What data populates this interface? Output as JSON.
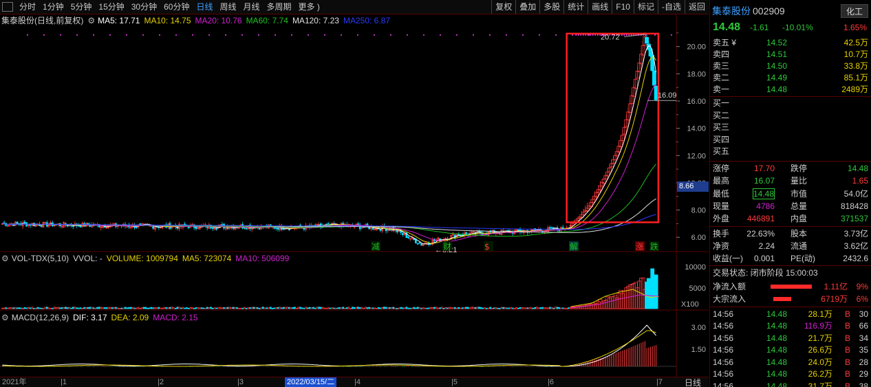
{
  "toolbar": {
    "periods": [
      "分时",
      "1分钟",
      "5分钟",
      "15分钟",
      "30分钟",
      "60分钟",
      "日线",
      "周线",
      "月线",
      "多周期",
      "更多 )"
    ],
    "active_period": "日线",
    "tools": [
      "复权",
      "叠加",
      "多股",
      "统计",
      "画线",
      "F10",
      "标记",
      "-自选",
      "返回"
    ]
  },
  "legend_main": {
    "title": "集泰股份(日线,前复权)",
    "ma5": "MA5: 17.71",
    "ma10": "MA10: 14.75",
    "ma20": "MA20: 10.76",
    "ma60": "MA60: 7.74",
    "ma120": "MA120: 7.23",
    "ma250": "MA250: 6.87"
  },
  "legend_vol": {
    "title": "VOL-TDX(5,10)",
    "vvol": "VVOL: -",
    "volume": "VOLUME: 1009794",
    "ma5": "MA5: 723074",
    "ma10": "MA10: 506099"
  },
  "legend_macd": {
    "title": "MACD(12,26,9)",
    "dif": "DIF: 3.17",
    "dea": "DEA: 2.09",
    "macd": "MACD: 2.15"
  },
  "colors": {
    "up": "#ff3a3a",
    "down": "#00e0ff",
    "ma5": "#ffffff",
    "ma10": "#e6d200",
    "ma20": "#d020d0",
    "ma60": "#20c020",
    "ma120": "#e0e0e0",
    "ma250": "#2a3aff",
    "highlight": "#ff2020"
  },
  "price_axis": [
    "20.00",
    "18.00",
    "16.00",
    "14.00",
    "12.00",
    "10.00",
    "8.00",
    "6.00"
  ],
  "price_marker": "8.66",
  "annotations": {
    "high": "20.72",
    "close": "16.09",
    "low": "5.21"
  },
  "event_markers": [
    "减",
    "财",
    "$",
    "解",
    "涨",
    "跌"
  ],
  "vol_axis": [
    "10000",
    "5000"
  ],
  "vol_unit": "X100",
  "macd_axis": [
    "3.00",
    "1.50"
  ],
  "time_axis": {
    "year": "2021年",
    "months": [
      "1",
      "2",
      "3",
      "4",
      "5",
      "6",
      "7"
    ],
    "cursor_date": "2022/03/15/二",
    "period_label": "日线"
  },
  "chart_data": {
    "type": "candlestick",
    "title": "集泰股份(日线,前复权)",
    "y_range": [
      5.0,
      21.5
    ],
    "close_path_keypoints": [
      [
        0,
        7.0
      ],
      [
        40,
        6.9
      ],
      [
        90,
        6.8
      ],
      [
        130,
        6.8
      ],
      [
        160,
        6.7
      ],
      [
        180,
        6.9
      ],
      [
        210,
        6.6
      ],
      [
        225,
        5.5
      ],
      [
        245,
        6.2
      ],
      [
        270,
        6.4
      ],
      [
        300,
        6.6
      ],
      [
        305,
        6.9
      ],
      [
        310,
        7.5
      ],
      [
        315,
        8.3
      ],
      [
        320,
        9.5
      ],
      [
        325,
        10.8
      ],
      [
        330,
        12.3
      ],
      [
        333,
        13.5
      ],
      [
        336,
        15.2
      ],
      [
        339,
        17.0
      ],
      [
        342,
        18.8
      ],
      [
        345,
        20.72
      ],
      [
        348,
        19.3
      ],
      [
        351,
        16.09
      ]
    ],
    "volume_ma5": "723074",
    "macd": {
      "dif": 3.17,
      "dea": 2.09,
      "macd": 2.15
    }
  },
  "quote": {
    "name": "集泰股份",
    "code": "002909",
    "industry": "化工",
    "price": "14.48",
    "change": "-1.61",
    "change_pct": "-10.01%",
    "ratio": "1.65%",
    "asks": [
      {
        "label": "卖五 ¥",
        "price": "14.52",
        "vol": "42.5万"
      },
      {
        "label": "卖四",
        "price": "14.51",
        "vol": "10.7万"
      },
      {
        "label": "卖三",
        "price": "14.50",
        "vol": "33.8万"
      },
      {
        "label": "卖二",
        "price": "14.49",
        "vol": "85.1万"
      },
      {
        "label": "卖一",
        "price": "14.48",
        "vol": "2489万"
      }
    ],
    "bids": [
      "买一",
      "买二",
      "买三",
      "买四",
      "买五"
    ],
    "stats": [
      {
        "l1": "涨停",
        "v1": "17.70",
        "c1": "#ff3a3a",
        "l2": "跌停",
        "v2": "14.48",
        "c2": "#2ec93a"
      },
      {
        "l1": "最高",
        "v1": "16.07",
        "c1": "#2ec93a",
        "l2": "量比",
        "v2": "1.65",
        "c2": "#ff3a3a"
      },
      {
        "l1": "最低",
        "v1": "14.48",
        "c1": "#2ec93a",
        "l2": "市值",
        "v2": "54.0亿",
        "c2": "#d0d0d0"
      },
      {
        "l1": "现量",
        "v1": "4786",
        "c1": "#d020d0",
        "l2": "总量",
        "v2": "818428",
        "c2": "#d0d0d0"
      },
      {
        "l1": "外盘",
        "v1": "446891",
        "c1": "#ff3a3a",
        "l2": "内盘",
        "v2": "371537",
        "c2": "#2ec93a"
      }
    ],
    "stats2": [
      {
        "l1": "换手",
        "v1": "22.63%",
        "l2": "股本",
        "v2": "3.73亿"
      },
      {
        "l1": "净资",
        "v1": "2.24",
        "l2": "流通",
        "v2": "3.62亿"
      },
      {
        "l1": "收益(一)",
        "v1": "0.001",
        "l2": "PE(动)",
        "v2": "2432.6"
      }
    ],
    "trade_status": "交易状态: 闭市阶段 15:00:03",
    "flows": [
      {
        "label": "净流入额",
        "value": "1.11亿",
        "pct": "9%"
      },
      {
        "label": "大宗流入",
        "value": "6719万",
        "pct": "6%"
      }
    ],
    "ticks": [
      {
        "t": "14:56",
        "p": "14.48",
        "v": "28.1万",
        "s": "B",
        "n": "30"
      },
      {
        "t": "14:56",
        "p": "14.48",
        "v": "116.9万",
        "s": "B",
        "n": "66"
      },
      {
        "t": "14:56",
        "p": "14.48",
        "v": "21.7万",
        "s": "B",
        "n": "34"
      },
      {
        "t": "14:56",
        "p": "14.48",
        "v": "26.6万",
        "s": "B",
        "n": "35"
      },
      {
        "t": "14:56",
        "p": "14.48",
        "v": "24.0万",
        "s": "B",
        "n": "28"
      },
      {
        "t": "14:56",
        "p": "14.48",
        "v": "26.2万",
        "s": "B",
        "n": "29"
      },
      {
        "t": "14:56",
        "p": "14.48",
        "v": "31.7万",
        "s": "B",
        "n": "38"
      }
    ]
  }
}
